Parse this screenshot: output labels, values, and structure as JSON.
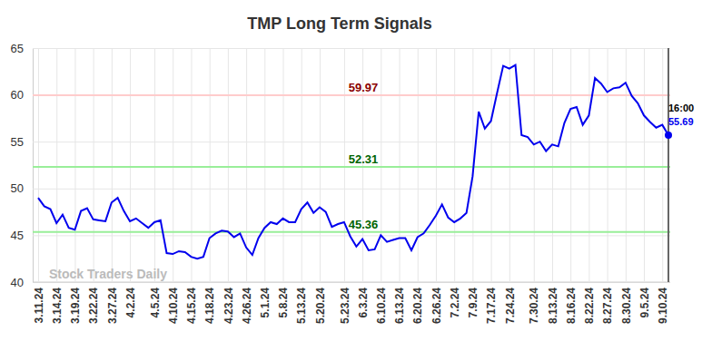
{
  "chart_data": {
    "type": "line",
    "title": "TMP Long Term Signals",
    "watermark": "Stock Traders Daily",
    "annotation": "16:00",
    "categories": [
      "3.11.24",
      null,
      null,
      "3.14.24",
      null,
      null,
      "3.19.24",
      null,
      null,
      "3.22.24",
      null,
      null,
      "3.27.24",
      null,
      null,
      "4.2.24",
      null,
      null,
      null,
      "4.5.24",
      null,
      null,
      "4.10.24",
      null,
      null,
      "4.15.24",
      null,
      null,
      "4.18.24",
      null,
      null,
      "4.23.24",
      null,
      null,
      "4.26.24",
      null,
      null,
      "5.1.24",
      null,
      null,
      "5.8.24",
      null,
      null,
      "5.13.24",
      null,
      null,
      "5.20.24",
      null,
      null,
      null,
      "5.23.24",
      null,
      null,
      "6.3.24",
      null,
      null,
      "6.10.24",
      null,
      null,
      "6.13.24",
      null,
      null,
      "6.20.24",
      null,
      null,
      "6.26.24",
      null,
      null,
      "7.2.24",
      null,
      null,
      "7.9.24",
      null,
      null,
      "7.17.24",
      null,
      null,
      "7.24.24",
      null,
      null,
      null,
      "7.30.24",
      null,
      null,
      "8.13.24",
      null,
      null,
      "8.16.24",
      null,
      null,
      "8.22.24",
      null,
      null,
      "8.27.24",
      null,
      null,
      "8.30.24",
      null,
      null,
      "9.5.24",
      null,
      null,
      "9.10.24",
      null
    ],
    "series": [
      {
        "color": "#0000ee",
        "values": [
          49.0,
          48.1,
          47.8,
          46.3,
          47.2,
          45.8,
          45.6,
          47.6,
          47.9,
          46.7,
          46.6,
          46.5,
          48.5,
          49.0,
          47.6,
          46.5,
          46.8,
          46.3,
          45.8,
          46.4,
          46.6,
          43.1,
          43.0,
          43.3,
          43.2,
          42.7,
          42.5,
          42.7,
          44.7,
          45.2,
          45.5,
          45.4,
          44.8,
          45.2,
          43.7,
          42.9,
          44.7,
          45.8,
          46.4,
          46.2,
          46.8,
          46.4,
          46.4,
          47.8,
          48.5,
          47.4,
          48.0,
          47.5,
          45.9,
          46.2,
          46.4,
          44.9,
          43.8,
          44.6,
          43.4,
          43.5,
          45.0,
          44.3,
          44.5,
          44.7,
          44.7,
          43.4,
          44.8,
          45.2,
          46.1,
          47.1,
          48.3,
          46.9,
          46.4,
          46.8,
          47.4,
          51.3,
          58.2,
          56.4,
          57.2,
          60.2,
          63.1,
          62.8,
          63.2,
          55.7,
          55.5,
          54.7,
          55.0,
          54.0,
          54.7,
          54.5,
          57.0,
          58.5,
          58.7,
          56.8,
          57.8,
          61.8,
          61.2,
          60.3,
          60.7,
          60.8,
          61.3,
          59.9,
          59.1,
          57.8,
          57.1,
          56.5,
          56.8,
          55.69
        ]
      }
    ],
    "levels": [
      59.97,
      52.31,
      45.36
    ],
    "ylim": [
      40,
      65
    ],
    "yticks": [
      40,
      45,
      50,
      55,
      60,
      65
    ],
    "grid": true
  }
}
